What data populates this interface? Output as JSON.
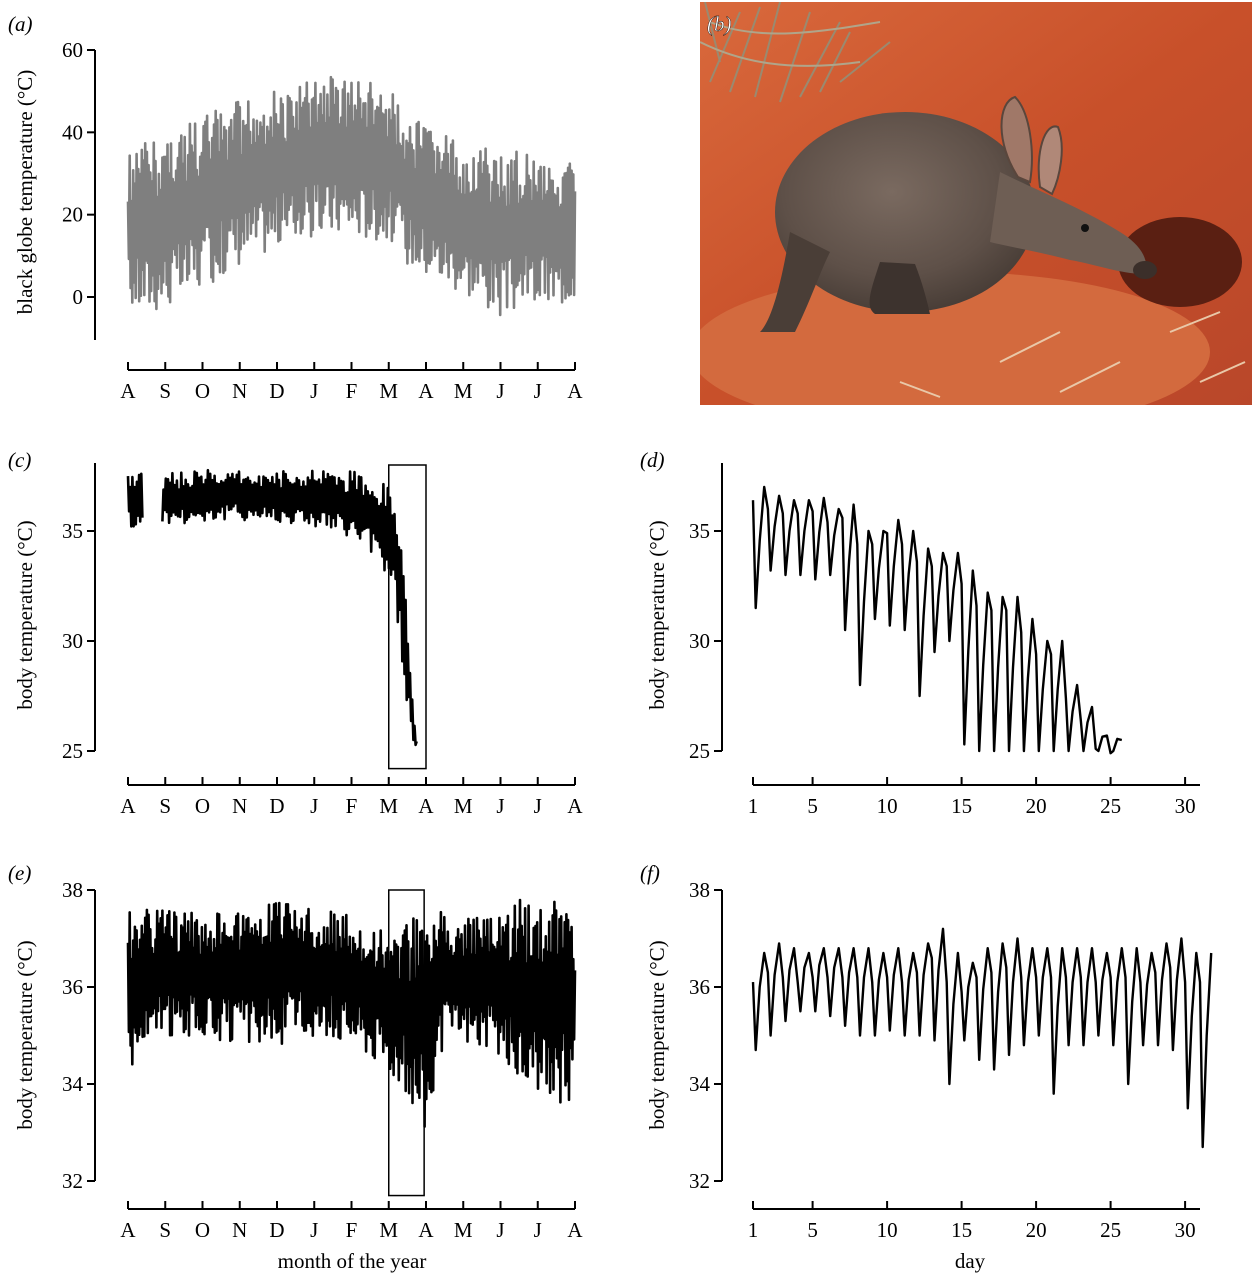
{
  "panel_labels": {
    "a": "(a)",
    "b": "(b)",
    "c": "(c)",
    "d": "(d)",
    "e": "(e)",
    "f": "(f)"
  },
  "photo": {
    "subject": "aardvark digging at burrow entrance in red sand"
  },
  "colors": {
    "globe_trace": "#7f7f7f",
    "body_trace": "#000000",
    "sand": "#c8502a",
    "sand_light": "#d9693c",
    "aardvark_body": "#5e5048",
    "aardvark_ear": "#a07868"
  },
  "chart_data": [
    {
      "id": "a",
      "type": "line",
      "ylabel": "black globe temperature (°C)",
      "xlabel": "",
      "yticks": [
        0,
        20,
        40,
        60
      ],
      "ylim": [
        -10,
        60
      ],
      "x_unit": "month",
      "xticks": [
        "A",
        "S",
        "O",
        "N",
        "D",
        "J",
        "F",
        "M",
        "A",
        "M",
        "J",
        "J",
        "A"
      ],
      "xlim": [
        0,
        12
      ],
      "series": [
        {
          "color": "#7f7f7f",
          "envelope": {
            "x": [
              0,
              0.5,
              1,
              1.5,
              2,
              2.5,
              3,
              3.5,
              4,
              4.5,
              5,
              5.5,
              6,
              6.5,
              7,
              7.5,
              8,
              8.5,
              9,
              9.5,
              10,
              10.5,
              11,
              11.5,
              12
            ],
            "max": [
              35,
              38,
              40,
              42,
              44,
              46,
              48,
              49,
              50,
              51,
              53,
              54,
              53,
              52,
              51,
              45,
              41,
              40,
              37,
              37,
              35,
              36,
              35,
              35,
              33
            ],
            "min": [
              -3,
              -4,
              -3,
              -1,
              2,
              5,
              8,
              10,
              12,
              14,
              14,
              15,
              15,
              14,
              14,
              8,
              5,
              3,
              1,
              -2,
              -5,
              -3,
              -2,
              -3,
              0
            ]
          }
        }
      ]
    },
    {
      "id": "c",
      "type": "line",
      "ylabel": "body temperature (°C)",
      "xlabel": "",
      "yticks": [
        25,
        30,
        35
      ],
      "ylim": [
        24,
        38
      ],
      "x_unit": "month",
      "xticks": [
        "A",
        "S",
        "O",
        "N",
        "D",
        "J",
        "F",
        "M",
        "A",
        "M",
        "J",
        "J",
        "A"
      ],
      "xlim": [
        0,
        12
      ],
      "gap": [
        0.4,
        0.9
      ],
      "highlight_box": {
        "x": [
          7.0,
          8.0
        ],
        "y": [
          24.2,
          38
        ]
      },
      "series": [
        {
          "color": "#000000",
          "envelope": {
            "x": [
              0,
              0.4,
              0.9,
              1,
              2,
              3,
              4,
              5,
              6,
              6.5,
              7.0,
              7.2,
              7.35,
              7.45,
              7.55,
              7.65,
              7.75
            ],
            "max": [
              37.6,
              37.8,
              37.2,
              37.6,
              37.8,
              37.8,
              37.7,
              37.8,
              37.8,
              37.5,
              37.2,
              35.8,
              34.5,
              32,
              30,
              27.2,
              25.5
            ],
            "min": [
              35.2,
              35,
              35.3,
              35.3,
              35.4,
              35.5,
              35.4,
              35.2,
              34.6,
              34,
              32.8,
              31.5,
              29,
              27.5,
              26.5,
              25,
              25
            ]
          }
        }
      ]
    },
    {
      "id": "d",
      "type": "line",
      "ylabel": "body temperature (°C)",
      "xlabel": "",
      "yticks": [
        25,
        30,
        35
      ],
      "ylim": [
        24,
        37.5
      ],
      "x_unit": "day",
      "xticks": [
        1,
        5,
        10,
        15,
        20,
        25,
        30
      ],
      "xlim": [
        1,
        31
      ],
      "series": [
        {
          "color": "#000000",
          "daily_max": [
            37.0,
            36.6,
            36.4,
            36.4,
            36.5,
            36.0,
            36.2,
            35.0,
            35.0,
            35.5,
            35.0,
            34.2,
            34.0,
            34.0,
            33.2,
            32.2,
            32.0,
            32.0,
            31.0,
            30.0,
            30.0,
            28.0,
            27.0,
            25.7,
            25.5
          ],
          "daily_min": [
            31.5,
            33.2,
            33.0,
            33.0,
            32.8,
            33.0,
            30.5,
            28.0,
            31.0,
            30.7,
            30.5,
            27.5,
            29.5,
            30.0,
            25.3,
            25.0,
            25.0,
            25.0,
            25.0,
            25.0,
            25.0,
            25.0,
            25.0,
            25.0,
            25.0
          ]
        }
      ]
    },
    {
      "id": "e",
      "type": "line",
      "ylabel": "body temperature (°C)",
      "xlabel": "month of the year",
      "yticks": [
        32,
        34,
        36,
        38
      ],
      "ylim": [
        31.5,
        38
      ],
      "x_unit": "month",
      "xticks": [
        "A",
        "S",
        "O",
        "N",
        "D",
        "J",
        "F",
        "M",
        "A",
        "M",
        "J",
        "J",
        "A"
      ],
      "xlim": [
        0,
        12
      ],
      "highlight_box": {
        "x": [
          7.0,
          7.95
        ],
        "y": [
          31.7,
          38
        ]
      },
      "series": [
        {
          "color": "#000000",
          "envelope": {
            "x": [
              0,
              1,
              2,
              3,
              4,
              4.5,
              5,
              6,
              7,
              7.5,
              8,
              8.5,
              9,
              10,
              11,
              11.5,
              12
            ],
            "max": [
              37.6,
              37.6,
              37.5,
              37.6,
              37.8,
              38.0,
              37.6,
              37.5,
              37.3,
              37.3,
              38.0,
              37.6,
              37.5,
              37.6,
              38.0,
              38.0,
              37.4
            ],
            "min": [
              34.3,
              35.0,
              35.0,
              34.8,
              34.8,
              34.9,
              35.0,
              34.9,
              34.3,
              33.8,
              33.0,
              34.8,
              34.9,
              34.6,
              33.5,
              33.6,
              33.6
            ]
          }
        }
      ]
    },
    {
      "id": "f",
      "type": "line",
      "ylabel": "body temperature (°C)",
      "xlabel": "day",
      "yticks": [
        32,
        34,
        36,
        38
      ],
      "ylim": [
        31.5,
        38
      ],
      "x_unit": "day",
      "xticks": [
        1,
        5,
        10,
        15,
        20,
        25,
        30
      ],
      "xlim": [
        1,
        31
      ],
      "series": [
        {
          "color": "#000000",
          "daily_max": [
            36.7,
            36.9,
            36.8,
            36.7,
            36.8,
            36.8,
            36.8,
            36.8,
            36.7,
            36.8,
            36.7,
            36.9,
            37.2,
            36.7,
            36.5,
            36.8,
            36.9,
            37.0,
            36.8,
            36.8,
            36.8,
            36.8,
            36.8,
            36.7,
            36.8,
            36.8,
            36.7,
            36.9,
            37.0,
            36.7,
            36.7
          ],
          "daily_min": [
            34.7,
            35.0,
            35.3,
            35.5,
            35.5,
            35.4,
            35.2,
            35.0,
            35.0,
            35.1,
            35.0,
            35.0,
            34.9,
            34.0,
            34.9,
            34.5,
            34.3,
            34.6,
            34.8,
            35.0,
            33.8,
            34.8,
            34.8,
            35.0,
            34.8,
            34.0,
            34.8,
            34.8,
            34.7,
            33.5,
            32.7
          ]
        }
      ]
    }
  ]
}
